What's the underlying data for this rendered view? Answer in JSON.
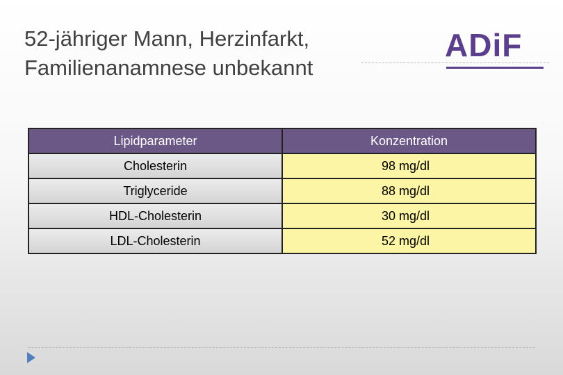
{
  "header": {
    "title_lines": [
      "52-jähriger Mann, Herzinfarkt,",
      "Familienanamnese unbekannt"
    ],
    "logo": "ADiF"
  },
  "table": {
    "header": [
      "Lipidparameter",
      "Konzentration"
    ],
    "rows": [
      [
        "Cholesterin",
        "98 mg/dl"
      ],
      [
        "Triglyceride",
        "88 mg/dl"
      ],
      [
        "HDL-Cholesterin",
        "30 mg/dl"
      ],
      [
        "LDL-Cholesterin",
        "52 mg/dl"
      ]
    ]
  }
}
